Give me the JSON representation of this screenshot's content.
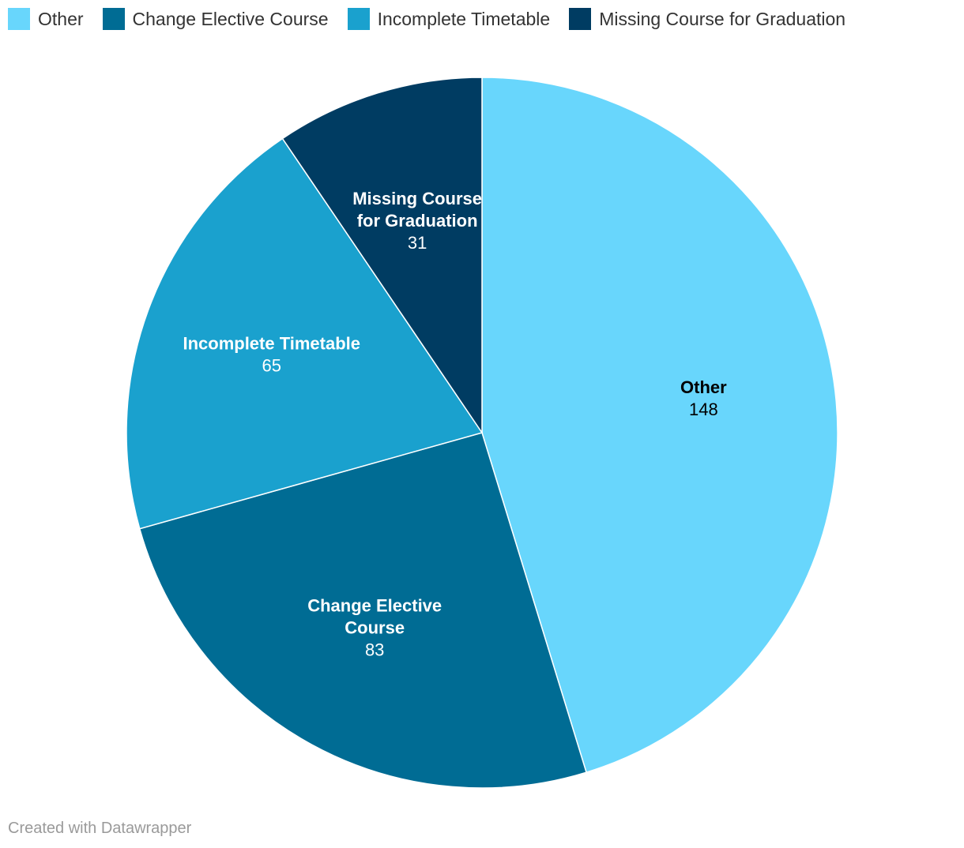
{
  "chart_data": {
    "type": "pie",
    "title": "",
    "slices": [
      {
        "label": "Other",
        "value": 148,
        "color": "#68d6fc",
        "label_lines": [
          "Other"
        ],
        "text_color": "#000000"
      },
      {
        "label": "Change Elective Course",
        "value": 83,
        "color": "#006c94",
        "label_lines": [
          "Change Elective",
          "Course"
        ],
        "text_color": "#ffffff"
      },
      {
        "label": "Incomplete Timetable",
        "value": 65,
        "color": "#1aa1ce",
        "label_lines": [
          "Incomplete Timetable"
        ],
        "text_color": "#ffffff"
      },
      {
        "label": "Missing Course for Graduation",
        "value": 31,
        "color": "#003c62",
        "label_lines": [
          "Missing Course",
          "for Graduation"
        ],
        "text_color": "#ffffff"
      }
    ],
    "legend": [
      "Other",
      "Change Elective Course",
      "Incomplete Timetable",
      "Missing Course for Graduation"
    ],
    "legend_position": "top-left",
    "direction": "clockwise"
  },
  "footer": "Created with Datawrapper"
}
